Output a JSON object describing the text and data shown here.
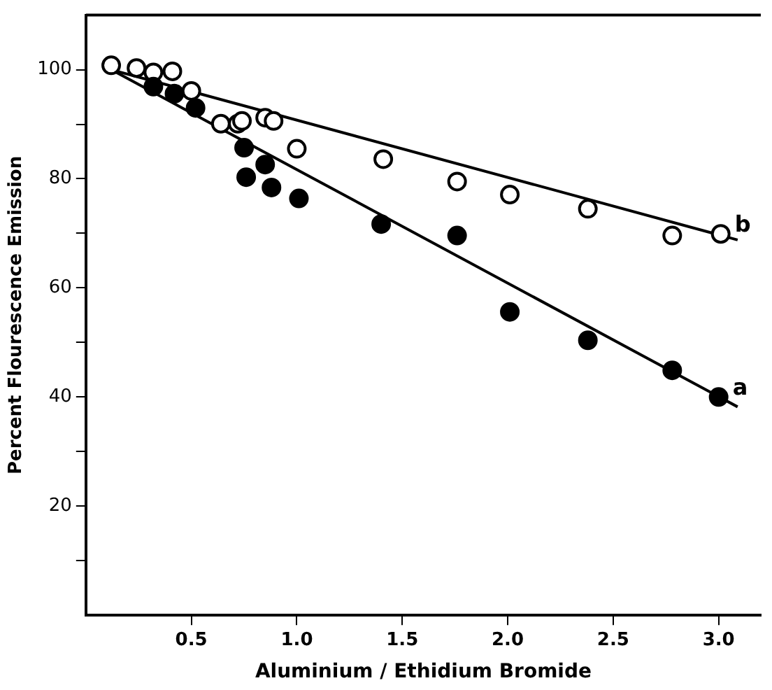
{
  "chart_data": {
    "type": "scatter",
    "xlabel": "Aluminium / Ethidium Bromide",
    "ylabel": "Percent Flourescence Emission",
    "xlim": [
      0,
      3.2
    ],
    "ylim": [
      0,
      110
    ],
    "xticks": [
      0.5,
      {
        "value": 1,
        "label": "1.0"
      },
      1.5,
      {
        "value": 2,
        "label": "2.0"
      },
      2.5,
      {
        "value": 3,
        "label": "3.0"
      }
    ],
    "yticks": [
      {
        "value": 10,
        "label": null
      },
      20,
      {
        "value": 30,
        "label": null
      },
      40,
      {
        "value": 50,
        "label": null
      },
      60,
      {
        "value": 70,
        "label": null
      },
      80,
      {
        "value": 90,
        "label": null
      },
      100
    ],
    "grid": false,
    "series": [
      {
        "name": "a",
        "type": "scatter",
        "marker": "circle",
        "color": "#000000",
        "x": [
          0.32,
          0.42,
          0.52,
          0.75,
          0.85,
          0.76,
          0.88,
          1.01,
          1.4,
          1.76,
          2.01,
          2.38,
          2.78,
          3.0
        ],
        "values": [
          96.9,
          95.6,
          93.0,
          85.7,
          82.6,
          80.3,
          78.4,
          76.4,
          71.7,
          69.6,
          55.6,
          50.4,
          44.9,
          40.0
        ]
      },
      {
        "name": "b",
        "type": "scatter",
        "marker": "circle",
        "color": "#ffffff",
        "x": [
          0.12,
          0.24,
          0.32,
          0.41,
          0.5,
          0.64,
          0.72,
          0.74,
          0.85,
          0.89,
          1.0,
          1.41,
          1.76,
          2.01,
          2.38,
          2.78,
          3.01
        ],
        "values": [
          100.8,
          100.3,
          99.5,
          99.7,
          96.1,
          90.1,
          90.1,
          90.6,
          91.2,
          90.6,
          85.5,
          83.6,
          79.5,
          77.1,
          74.5,
          69.6,
          69.9
        ]
      },
      {
        "type": "line",
        "marker": "none",
        "color": "#000000",
        "x": [
          0.12,
          3.09
        ],
        "values": [
          100,
          38.2
        ]
      },
      {
        "type": "line",
        "marker": "none",
        "color": "#000000",
        "x": [
          0.12,
          3.09
        ],
        "values": [
          100,
          68.8
        ]
      }
    ]
  }
}
